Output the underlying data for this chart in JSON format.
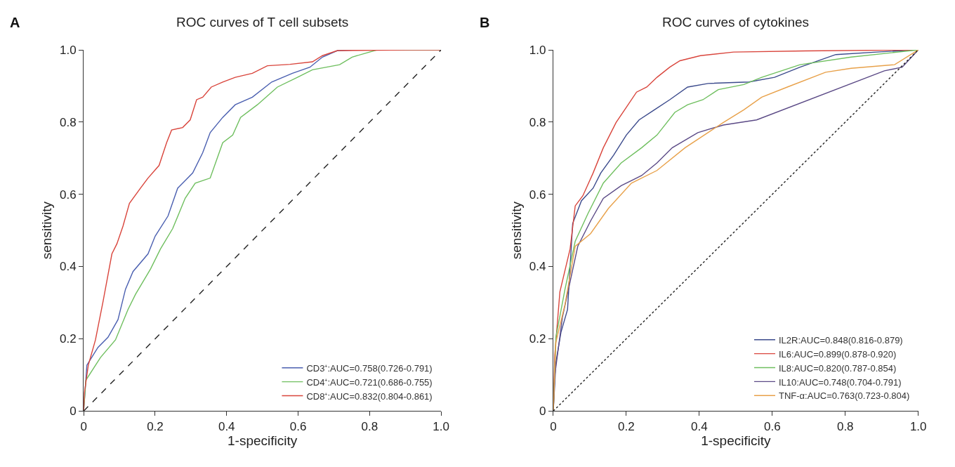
{
  "chart_data": [
    {
      "type": "line",
      "title": "ROC curves of T cell subsets",
      "xlabel": "1-specificity",
      "ylabel": "sensitivity",
      "annotations": [
        "A"
      ],
      "xlim": [
        0,
        1
      ],
      "ylim": [
        0,
        1
      ],
      "xticks": [
        0,
        0.2,
        0.4,
        0.6,
        0.8,
        {
          "value": 1,
          "label": "1.0"
        }
      ],
      "yticks": [
        0,
        0.2,
        0.4,
        0.6,
        0.8,
        {
          "value": 1,
          "label": "1.0"
        }
      ],
      "legend": "bottom right",
      "marker": "none",
      "line_style": "solid",
      "series": [
        {
          "name": "CD3⁺:AUC=0.758(0.726-0.791)",
          "color": "#4a5fb0",
          "x": [
            0,
            0.009,
            0.04,
            0.068,
            0.096,
            0.117,
            0.138,
            0.18,
            0.2,
            0.236,
            0.263,
            0.305,
            0.333,
            0.354,
            0.389,
            0.424,
            0.472,
            0.526,
            0.584,
            0.633,
            0.668,
            0.71,
            0.765,
            1
          ],
          "values": [
            0,
            0.127,
            0.176,
            0.204,
            0.253,
            0.337,
            0.386,
            0.435,
            0.484,
            0.54,
            0.617,
            0.659,
            0.715,
            0.771,
            0.813,
            0.848,
            0.869,
            0.911,
            0.935,
            0.952,
            0.98,
            0.998,
            1,
            1
          ]
        },
        {
          "name": "CD4⁺:AUC=0.721(0.686-0.755)",
          "color": "#6fbf5f",
          "x": [
            0,
            0.006,
            0.047,
            0.089,
            0.124,
            0.145,
            0.187,
            0.215,
            0.249,
            0.284,
            0.312,
            0.354,
            0.389,
            0.417,
            0.439,
            0.486,
            0.542,
            0.598,
            0.64,
            0.716,
            0.751,
            0.821,
            1
          ],
          "values": [
            0,
            0.085,
            0.148,
            0.197,
            0.281,
            0.323,
            0.393,
            0.449,
            0.505,
            0.589,
            0.631,
            0.645,
            0.743,
            0.764,
            0.813,
            0.848,
            0.897,
            0.924,
            0.945,
            0.959,
            0.98,
            1,
            1
          ]
        },
        {
          "name": "CD8⁺:AUC=0.832(0.804-0.861)",
          "color": "#d9453c",
          "x": [
            0,
            0.002,
            0.013,
            0.033,
            0.054,
            0.079,
            0.093,
            0.11,
            0.128,
            0.159,
            0.18,
            0.211,
            0.232,
            0.246,
            0.277,
            0.298,
            0.316,
            0.333,
            0.357,
            0.389,
            0.424,
            0.472,
            0.514,
            0.577,
            0.64,
            0.668,
            0.71,
            0.91,
            1
          ],
          "values": [
            0,
            0.05,
            0.127,
            0.197,
            0.302,
            0.435,
            0.463,
            0.512,
            0.575,
            0.617,
            0.645,
            0.68,
            0.743,
            0.778,
            0.785,
            0.806,
            0.862,
            0.869,
            0.897,
            0.911,
            0.924,
            0.935,
            0.956,
            0.96,
            0.967,
            0.984,
            0.998,
            1,
            1
          ]
        },
        {
          "color": "#222222",
          "line_style": "dashed",
          "x": [
            0,
            1
          ],
          "values": [
            0,
            1
          ]
        }
      ]
    },
    {
      "type": "line",
      "title": "ROC curves of cytokines",
      "xlabel": "1-specificity",
      "ylabel": "sensitivity",
      "annotations": [
        "B"
      ],
      "xlim": [
        0,
        1
      ],
      "ylim": [
        0,
        1
      ],
      "xticks": [
        0,
        0.2,
        0.4,
        0.6,
        0.8,
        {
          "value": 1,
          "label": "1.0"
        }
      ],
      "yticks": [
        0,
        0.2,
        0.4,
        0.6,
        0.8,
        {
          "value": 1,
          "label": "1.0"
        }
      ],
      "legend": "bottom right",
      "marker": "none",
      "line_style": "solid",
      "series": [
        {
          "name": "IL2R:AUC=0.848(0.816-0.879)",
          "color": "#3b4a8c",
          "x": [
            0,
            0.007,
            0.021,
            0.039,
            0.053,
            0.077,
            0.109,
            0.13,
            0.165,
            0.2,
            0.235,
            0.277,
            0.319,
            0.368,
            0.424,
            0.536,
            0.606,
            0.676,
            0.774,
            0.886,
            1
          ],
          "values": [
            0,
            0.134,
            0.218,
            0.281,
            0.519,
            0.582,
            0.617,
            0.659,
            0.708,
            0.764,
            0.806,
            0.834,
            0.862,
            0.897,
            0.907,
            0.911,
            0.924,
            0.952,
            0.987,
            0.994,
            1
          ]
        },
        {
          "name": "IL6:AUC=0.899(0.878-0.920)",
          "color": "#d9453c",
          "x": [
            0,
            0.004,
            0.018,
            0.046,
            0.06,
            0.081,
            0.109,
            0.137,
            0.172,
            0.2,
            0.228,
            0.256,
            0.284,
            0.319,
            0.347,
            0.403,
            0.494,
            0.69,
            1
          ],
          "values": [
            0,
            0.155,
            0.33,
            0.449,
            0.568,
            0.596,
            0.659,
            0.729,
            0.799,
            0.841,
            0.883,
            0.897,
            0.924,
            0.952,
            0.97,
            0.984,
            0.994,
            0.997,
            1
          ]
        },
        {
          "name": "IL8:AUC=0.820(0.787-0.854)",
          "color": "#6fbf5f",
          "x": [
            0,
            0.007,
            0.032,
            0.06,
            0.095,
            0.137,
            0.186,
            0.242,
            0.284,
            0.333,
            0.368,
            0.41,
            0.452,
            0.522,
            0.571,
            0.676,
            0.816,
            1
          ],
          "values": [
            0,
            0.204,
            0.337,
            0.47,
            0.547,
            0.631,
            0.687,
            0.729,
            0.764,
            0.827,
            0.848,
            0.862,
            0.89,
            0.904,
            0.924,
            0.959,
            0.98,
            1
          ]
        },
        {
          "name": "IL10:AUC=0.748(0.704-0.791)",
          "color": "#5b4a86",
          "x": [
            0,
            0.004,
            0.025,
            0.046,
            0.067,
            0.102,
            0.137,
            0.186,
            0.242,
            0.284,
            0.326,
            0.396,
            0.466,
            0.557,
            0.907,
            0.956,
            1
          ],
          "values": [
            0,
            0.099,
            0.26,
            0.358,
            0.456,
            0.526,
            0.589,
            0.624,
            0.652,
            0.687,
            0.729,
            0.771,
            0.792,
            0.806,
            0.942,
            0.952,
            1
          ]
        },
        {
          "name": "TNF-α:AUC=0.763(0.723-0.804)",
          "color": "#e8a14a",
          "x": [
            0,
            0.007,
            0.032,
            0.06,
            0.102,
            0.151,
            0.214,
            0.284,
            0.361,
            0.466,
            0.522,
            0.571,
            0.641,
            0.746,
            0.816,
            0.935,
            1
          ],
          "values": [
            0,
            0.19,
            0.295,
            0.456,
            0.491,
            0.561,
            0.631,
            0.666,
            0.729,
            0.799,
            0.834,
            0.869,
            0.897,
            0.938,
            0.949,
            0.959,
            1
          ]
        },
        {
          "color": "#222222",
          "line_style": "dotted",
          "x": [
            0,
            1
          ],
          "values": [
            0,
            1
          ]
        }
      ]
    }
  ]
}
